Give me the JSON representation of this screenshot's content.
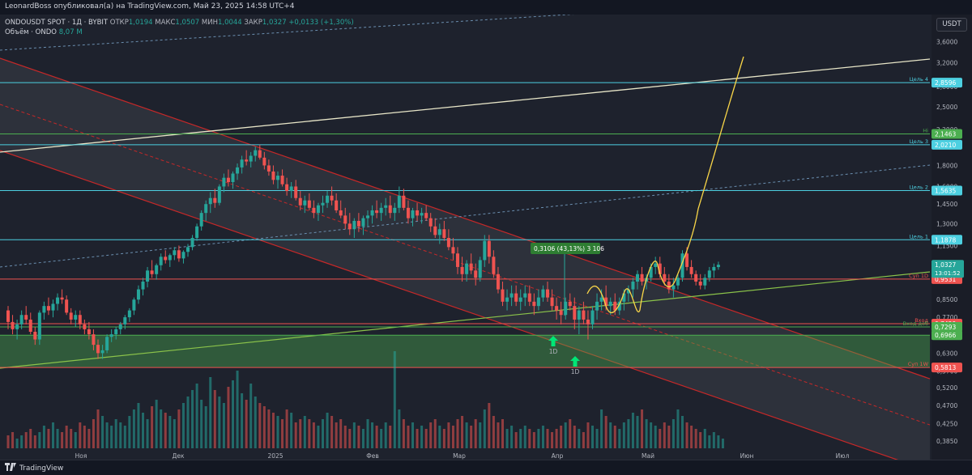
{
  "header": {
    "published_text": "LeonardBoss опубликовал(а) на TradingView.com, Май 23, 2025 14:58 UTC+4"
  },
  "legend": {
    "symbol": "ONDOUSDT SPOT · 1Д · BYBIT",
    "open_label": "ОТКР",
    "open_value": "1,0194",
    "high_label": "МАКС",
    "high_value": "1,0507",
    "low_label": "МИН",
    "low_value": "1,0044",
    "close_label": "ЗАКР",
    "close_value": "1,0327",
    "change_value": "+0,0133 (+1,30%)",
    "volume_label": "Объём · ONDO",
    "volume_value": "8,07 M"
  },
  "currency": "USDT",
  "footer": {
    "brand": "TradingView",
    "brand_icon": "tradingview-logo-icon"
  },
  "colors": {
    "background": "#1e222d",
    "up": "#26a69a",
    "down": "#ef5350",
    "cyan_level": "#4dd0e1",
    "green_level": "#4caf50",
    "red_level": "#ef5350",
    "channel": "#c62828",
    "yellow_path": "#f9d648",
    "trend_line": "#e8e6c8"
  },
  "chart_data": {
    "type": "candlestick",
    "y_scale": "log",
    "ylim": [
      0.37,
      4.0
    ],
    "price_ticks": [
      "3,6000",
      "3,2000",
      "2,8000",
      "2,5000",
      "2,2000",
      "1,8000",
      "1,6000",
      "1,4500",
      "1,3000",
      "1,1500",
      "1,0300",
      "0,8500",
      "0,7700",
      "0,7000",
      "0,6300",
      "0,5700",
      "0,5200",
      "0,4700",
      "0,4250",
      "0,3850"
    ],
    "x_labels": [
      "Ноя",
      "Дек",
      "2025",
      "Фев",
      "Мар",
      "Апр",
      "Май",
      "Июн",
      "Июл"
    ],
    "candles": [
      [
        0.8,
        0.82,
        0.72,
        0.75
      ],
      [
        0.75,
        0.78,
        0.7,
        0.72
      ],
      [
        0.72,
        0.76,
        0.68,
        0.74
      ],
      [
        0.74,
        0.8,
        0.72,
        0.78
      ],
      [
        0.78,
        0.82,
        0.74,
        0.76
      ],
      [
        0.76,
        0.79,
        0.7,
        0.71
      ],
      [
        0.71,
        0.73,
        0.66,
        0.68
      ],
      [
        0.68,
        0.8,
        0.66,
        0.79
      ],
      [
        0.79,
        0.84,
        0.76,
        0.82
      ],
      [
        0.82,
        0.86,
        0.78,
        0.8
      ],
      [
        0.8,
        0.85,
        0.77,
        0.83
      ],
      [
        0.83,
        0.88,
        0.8,
        0.86
      ],
      [
        0.86,
        0.9,
        0.83,
        0.85
      ],
      [
        0.85,
        0.87,
        0.78,
        0.79
      ],
      [
        0.79,
        0.81,
        0.74,
        0.76
      ],
      [
        0.76,
        0.8,
        0.73,
        0.78
      ],
      [
        0.78,
        0.8,
        0.72,
        0.74
      ],
      [
        0.74,
        0.76,
        0.7,
        0.72
      ],
      [
        0.72,
        0.75,
        0.68,
        0.7
      ],
      [
        0.7,
        0.72,
        0.64,
        0.66
      ],
      [
        0.66,
        0.68,
        0.61,
        0.63
      ],
      [
        0.63,
        0.66,
        0.61,
        0.64
      ],
      [
        0.64,
        0.7,
        0.63,
        0.69
      ],
      [
        0.69,
        0.72,
        0.67,
        0.7
      ],
      [
        0.7,
        0.73,
        0.68,
        0.72
      ],
      [
        0.72,
        0.75,
        0.7,
        0.74
      ],
      [
        0.74,
        0.78,
        0.72,
        0.77
      ],
      [
        0.77,
        0.81,
        0.75,
        0.8
      ],
      [
        0.8,
        0.86,
        0.78,
        0.85
      ],
      [
        0.85,
        0.92,
        0.83,
        0.9
      ],
      [
        0.9,
        0.96,
        0.87,
        0.94
      ],
      [
        0.94,
        1.02,
        0.91,
        1.0
      ],
      [
        1.0,
        1.06,
        0.96,
        0.98
      ],
      [
        0.98,
        1.04,
        0.95,
        1.03
      ],
      [
        1.03,
        1.1,
        1.0,
        1.08
      ],
      [
        1.08,
        1.12,
        1.04,
        1.06
      ],
      [
        1.06,
        1.1,
        1.02,
        1.09
      ],
      [
        1.09,
        1.14,
        1.06,
        1.12
      ],
      [
        1.12,
        1.15,
        1.05,
        1.07
      ],
      [
        1.07,
        1.12,
        1.04,
        1.11
      ],
      [
        1.11,
        1.16,
        1.08,
        1.14
      ],
      [
        1.14,
        1.22,
        1.12,
        1.2
      ],
      [
        1.2,
        1.3,
        1.18,
        1.28
      ],
      [
        1.28,
        1.4,
        1.25,
        1.38
      ],
      [
        1.38,
        1.48,
        1.32,
        1.45
      ],
      [
        1.45,
        1.55,
        1.38,
        1.5
      ],
      [
        1.5,
        1.58,
        1.42,
        1.46
      ],
      [
        1.46,
        1.62,
        1.44,
        1.6
      ],
      [
        1.6,
        1.72,
        1.55,
        1.68
      ],
      [
        1.68,
        1.76,
        1.6,
        1.64
      ],
      [
        1.64,
        1.74,
        1.58,
        1.72
      ],
      [
        1.72,
        1.82,
        1.66,
        1.78
      ],
      [
        1.78,
        1.9,
        1.72,
        1.86
      ],
      [
        1.86,
        1.96,
        1.8,
        1.84
      ],
      [
        1.84,
        1.94,
        1.78,
        1.9
      ],
      [
        1.9,
        2.0,
        1.84,
        1.96
      ],
      [
        1.96,
        2.02,
        1.86,
        1.88
      ],
      [
        1.88,
        1.94,
        1.76,
        1.8
      ],
      [
        1.8,
        1.86,
        1.7,
        1.74
      ],
      [
        1.74,
        1.8,
        1.62,
        1.66
      ],
      [
        1.66,
        1.74,
        1.58,
        1.7
      ],
      [
        1.7,
        1.76,
        1.6,
        1.62
      ],
      [
        1.62,
        1.68,
        1.52,
        1.56
      ],
      [
        1.56,
        1.64,
        1.5,
        1.6
      ],
      [
        1.6,
        1.66,
        1.48,
        1.5
      ],
      [
        1.5,
        1.56,
        1.4,
        1.44
      ],
      [
        1.44,
        1.52,
        1.38,
        1.48
      ],
      [
        1.48,
        1.54,
        1.4,
        1.42
      ],
      [
        1.42,
        1.48,
        1.34,
        1.38
      ],
      [
        1.38,
        1.46,
        1.32,
        1.44
      ],
      [
        1.44,
        1.52,
        1.38,
        1.46
      ],
      [
        1.46,
        1.56,
        1.42,
        1.52
      ],
      [
        1.52,
        1.6,
        1.44,
        1.48
      ],
      [
        1.48,
        1.54,
        1.38,
        1.4
      ],
      [
        1.4,
        1.48,
        1.34,
        1.36
      ],
      [
        1.36,
        1.42,
        1.26,
        1.3
      ],
      [
        1.3,
        1.38,
        1.22,
        1.26
      ],
      [
        1.26,
        1.34,
        1.2,
        1.32
      ],
      [
        1.32,
        1.38,
        1.24,
        1.28
      ],
      [
        1.28,
        1.36,
        1.22,
        1.34
      ],
      [
        1.34,
        1.4,
        1.28,
        1.36
      ],
      [
        1.36,
        1.44,
        1.3,
        1.4
      ],
      [
        1.4,
        1.48,
        1.34,
        1.38
      ],
      [
        1.38,
        1.46,
        1.32,
        1.42
      ],
      [
        1.42,
        1.5,
        1.36,
        1.44
      ],
      [
        1.44,
        1.52,
        1.34,
        1.38
      ],
      [
        1.38,
        1.46,
        1.32,
        1.42
      ],
      [
        1.42,
        1.6,
        1.38,
        1.52
      ],
      [
        1.52,
        1.58,
        1.4,
        1.42
      ],
      [
        1.42,
        1.48,
        1.3,
        1.34
      ],
      [
        1.34,
        1.42,
        1.28,
        1.4
      ],
      [
        1.4,
        1.46,
        1.32,
        1.36
      ],
      [
        1.36,
        1.42,
        1.3,
        1.38
      ],
      [
        1.38,
        1.44,
        1.32,
        1.34
      ],
      [
        1.34,
        1.38,
        1.24,
        1.28
      ],
      [
        1.28,
        1.34,
        1.2,
        1.22
      ],
      [
        1.22,
        1.3,
        1.16,
        1.26
      ],
      [
        1.26,
        1.32,
        1.18,
        1.2
      ],
      [
        1.2,
        1.26,
        1.12,
        1.14
      ],
      [
        1.14,
        1.2,
        1.06,
        1.1
      ],
      [
        1.1,
        1.14,
        0.98,
        1.02
      ],
      [
        1.02,
        1.08,
        0.94,
        0.98
      ],
      [
        0.98,
        1.06,
        0.94,
        1.04
      ],
      [
        1.04,
        1.1,
        0.98,
        1.0
      ],
      [
        1.0,
        1.04,
        0.92,
        0.96
      ],
      [
        0.96,
        1.08,
        0.94,
        1.06
      ],
      [
        1.06,
        1.22,
        1.02,
        1.18
      ],
      [
        1.18,
        1.22,
        1.04,
        1.08
      ],
      [
        1.08,
        1.12,
        0.96,
        0.98
      ],
      [
        0.98,
        1.02,
        0.88,
        0.9
      ],
      [
        0.9,
        0.94,
        0.82,
        0.84
      ],
      [
        0.84,
        0.9,
        0.8,
        0.86
      ],
      [
        0.86,
        0.92,
        0.82,
        0.88
      ],
      [
        0.88,
        0.92,
        0.82,
        0.84
      ],
      [
        0.84,
        0.9,
        0.8,
        0.86
      ],
      [
        0.86,
        0.92,
        0.82,
        0.88
      ],
      [
        0.88,
        0.92,
        0.82,
        0.84
      ],
      [
        0.84,
        0.88,
        0.78,
        0.82
      ],
      [
        0.82,
        0.9,
        0.8,
        0.86
      ],
      [
        0.86,
        0.92,
        0.84,
        0.9
      ],
      [
        0.9,
        0.94,
        0.84,
        0.86
      ],
      [
        0.86,
        0.9,
        0.8,
        0.82
      ],
      [
        0.82,
        0.86,
        0.76,
        0.8
      ],
      [
        0.8,
        0.84,
        0.74,
        0.78
      ],
      [
        0.78,
        0.86,
        0.76,
        0.84
      ],
      [
        0.84,
        0.88,
        0.8,
        0.82
      ],
      [
        0.82,
        0.86,
        0.72,
        0.76
      ],
      [
        0.76,
        0.82,
        0.7,
        0.8
      ],
      [
        0.8,
        0.84,
        0.74,
        0.76
      ],
      [
        0.76,
        0.8,
        0.68,
        0.74
      ],
      [
        0.74,
        0.82,
        0.72,
        0.8
      ],
      [
        0.8,
        0.88,
        0.76,
        0.84
      ],
      [
        0.84,
        0.9,
        0.8,
        0.86
      ],
      [
        0.86,
        0.92,
        0.8,
        0.82
      ],
      [
        0.82,
        0.86,
        0.78,
        0.84
      ],
      [
        0.84,
        0.88,
        0.78,
        0.8
      ],
      [
        0.8,
        0.86,
        0.78,
        0.84
      ],
      [
        0.84,
        0.9,
        0.8,
        0.88
      ],
      [
        0.88,
        0.92,
        0.84,
        0.9
      ],
      [
        0.9,
        0.96,
        0.86,
        0.94
      ],
      [
        0.94,
        1.0,
        0.9,
        0.98
      ],
      [
        0.98,
        1.02,
        0.92,
        0.94
      ],
      [
        0.94,
        0.98,
        0.9,
        0.96
      ],
      [
        0.96,
        1.04,
        0.94,
        1.02
      ],
      [
        1.02,
        1.08,
        0.98,
        1.04
      ],
      [
        1.04,
        1.08,
        0.96,
        0.98
      ],
      [
        0.98,
        1.02,
        0.92,
        0.94
      ],
      [
        0.94,
        0.98,
        0.88,
        0.9
      ],
      [
        0.9,
        0.96,
        0.86,
        0.92
      ],
      [
        0.92,
        0.98,
        0.9,
        0.96
      ],
      [
        0.96,
        1.12,
        0.94,
        1.1
      ],
      [
        1.1,
        1.14,
        1.0,
        1.02
      ],
      [
        1.02,
        1.06,
        0.96,
        0.98
      ],
      [
        0.98,
        1.0,
        0.92,
        0.94
      ],
      [
        0.94,
        0.98,
        0.9,
        0.92
      ],
      [
        0.92,
        0.98,
        0.9,
        0.96
      ],
      [
        0.96,
        1.02,
        0.94,
        1.0
      ],
      [
        1.0,
        1.04,
        0.96,
        1.02
      ],
      [
        1.0194,
        1.0507,
        1.0044,
        1.0327
      ]
    ],
    "volume_bars": [
      4,
      5,
      3,
      4,
      5,
      6,
      4,
      5,
      7,
      6,
      8,
      6,
      5,
      7,
      6,
      5,
      8,
      7,
      6,
      9,
      12,
      10,
      8,
      7,
      9,
      8,
      7,
      10,
      12,
      14,
      11,
      9,
      13,
      15,
      12,
      11,
      10,
      9,
      12,
      14,
      16,
      18,
      20,
      15,
      13,
      22,
      18,
      16,
      14,
      19,
      21,
      24,
      17,
      15,
      20,
      16,
      14,
      13,
      12,
      11,
      10,
      9,
      12,
      11,
      8,
      9,
      10,
      9,
      8,
      7,
      9,
      11,
      10,
      8,
      9,
      7,
      6,
      8,
      7,
      6,
      9,
      8,
      7,
      6,
      8,
      7,
      30,
      12,
      9,
      7,
      8,
      6,
      7,
      6,
      8,
      9,
      7,
      6,
      8,
      7,
      9,
      10,
      8,
      7,
      9,
      8,
      12,
      14,
      10,
      8,
      9,
      6,
      7,
      5,
      6,
      7,
      6,
      5,
      6,
      7,
      6,
      5,
      6,
      7,
      8,
      9,
      7,
      6,
      5,
      8,
      7,
      6,
      12,
      10,
      8,
      7,
      6,
      8,
      9,
      11,
      10,
      12,
      9,
      8,
      7,
      6,
      8,
      7,
      9,
      12,
      10,
      8,
      7,
      6,
      5,
      6,
      4,
      5,
      4,
      3
    ],
    "levels": [
      {
        "price": 2.8596,
        "price_label": "2,8596",
        "name": "Цель 4",
        "kind": "cyan"
      },
      {
        "price": 2.1463,
        "price_label": "2,1463",
        "name": "Hi",
        "kind": "green"
      },
      {
        "price": 2.021,
        "price_label": "2,0210",
        "name": "Цель 3",
        "kind": "cyan"
      },
      {
        "price": 1.5635,
        "price_label": "1,5635",
        "name": "Цель 2",
        "kind": "cyan"
      },
      {
        "price": 1.1878,
        "price_label": "1,1878",
        "name": "Цель 1",
        "kind": "cyan"
      },
      {
        "price": 0.9531,
        "price_label": "0,9531",
        "name": "Суп 1D",
        "kind": "red"
      },
      {
        "price": 0.7429,
        "price_label": "0,7429",
        "name": "Вход",
        "kind": "red"
      },
      {
        "price": 0.7293,
        "price_label": "0,7293",
        "name": "Вход доб",
        "kind": "green"
      },
      {
        "price": 0.6966,
        "price_label": "0,6966",
        "name": "",
        "kind": "green"
      },
      {
        "price": 0.5813,
        "price_label": "0,5813",
        "name": "Суп 1W",
        "kind": "red"
      }
    ],
    "current_price": {
      "label": "1,0327",
      "timer": "13:01:52"
    },
    "measure_label": "0,3106 (43,13%) 3 106",
    "signal_labels": [
      "1D",
      "1D"
    ]
  }
}
